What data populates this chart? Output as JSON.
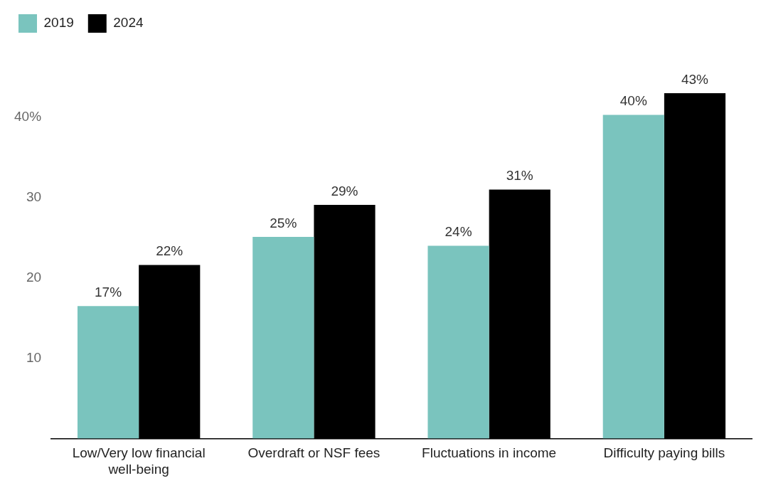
{
  "chart_data": {
    "type": "bar",
    "categories": [
      "Low/Very low financial well-being",
      "Overdraft or NSF fees",
      "Fluctuations in income",
      "Difficulty paying bills"
    ],
    "series": [
      {
        "name": "2019",
        "color": "#7ac4be",
        "values": [
          16.5,
          25.1,
          24.0,
          40.3
        ],
        "value_labels": [
          "17%",
          "25%",
          "24%",
          "40%"
        ]
      },
      {
        "name": "2024",
        "color": "#000000",
        "values": [
          21.6,
          29.1,
          31.0,
          43
        ],
        "value_labels": [
          "22%",
          "29%",
          "31%",
          "43%"
        ]
      }
    ],
    "ylim": [
      0,
      43
    ],
    "yticks": [
      10,
      20,
      30,
      {
        "value": 40,
        "label": "40%"
      }
    ],
    "grid": false,
    "legend": "top left"
  }
}
